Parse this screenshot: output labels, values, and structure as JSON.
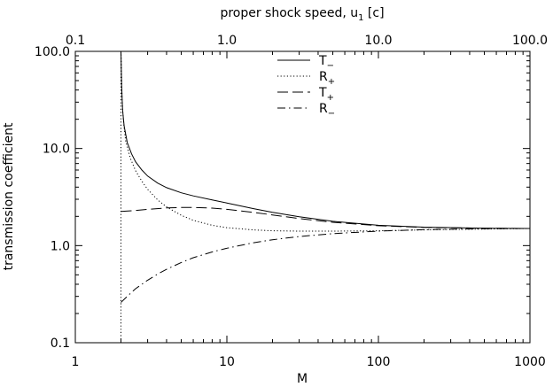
{
  "chart_data": {
    "type": "line",
    "xlabel": "M",
    "x2label_main": "proper shock speed,  u",
    "x2label_sub": "1",
    "x2label_unit": "  [c]",
    "ylabel": "transmission coefficient",
    "xscale": "log",
    "yscale": "log",
    "xlim": [
      1,
      1000
    ],
    "ylim": [
      0.1,
      100
    ],
    "x_ticks": [
      "1",
      "10",
      "100",
      "1000"
    ],
    "x2_ticks": [
      "0.1",
      "1.0",
      "10.0",
      "100.0"
    ],
    "y_ticks": [
      "0.1",
      "1.0",
      "10.0",
      "100.0"
    ],
    "legend_position": "top-center",
    "series": [
      {
        "name_main": "T",
        "name_sub": "−",
        "dash": "solid",
        "x": [
          2.0,
          2.02,
          2.05,
          2.1,
          2.2,
          2.35,
          2.5,
          2.75,
          3,
          3.5,
          4,
          5,
          6,
          8,
          10,
          15,
          20,
          30,
          50,
          100,
          200,
          500,
          1000
        ],
        "y": [
          100,
          45,
          25,
          17,
          11.5,
          8.8,
          7.3,
          6.0,
          5.2,
          4.4,
          3.95,
          3.5,
          3.25,
          2.95,
          2.75,
          2.4,
          2.2,
          1.98,
          1.78,
          1.62,
          1.55,
          1.51,
          1.5
        ]
      },
      {
        "name_main": "R",
        "name_sub": "+",
        "dash": "dotted",
        "x": [
          2.0,
          2.03,
          2.07,
          2.15,
          2.3,
          2.5,
          2.75,
          3,
          3.5,
          4,
          5,
          6,
          8,
          10,
          15,
          20,
          30,
          50,
          100,
          200,
          500,
          1000
        ],
        "y": [
          100,
          38,
          20,
          12,
          8.0,
          5.9,
          4.6,
          3.8,
          2.95,
          2.5,
          2.05,
          1.82,
          1.62,
          1.53,
          1.45,
          1.42,
          1.41,
          1.41,
          1.42,
          1.45,
          1.48,
          1.5
        ]
      },
      {
        "name_main": "T",
        "name_sub": "+",
        "dash": "dashed",
        "x": [
          2.0,
          2.5,
          3,
          4,
          5,
          6,
          8,
          10,
          15,
          20,
          30,
          50,
          100,
          200,
          500,
          1000
        ],
        "y": [
          2.25,
          2.3,
          2.36,
          2.44,
          2.47,
          2.47,
          2.43,
          2.36,
          2.2,
          2.07,
          1.9,
          1.74,
          1.6,
          1.54,
          1.51,
          1.5
        ]
      },
      {
        "name_main": "R",
        "name_sub": "−",
        "dash": "dashdot",
        "x": [
          2.0,
          2.1,
          2.25,
          2.5,
          3,
          3.5,
          4,
          5,
          6,
          8,
          10,
          15,
          20,
          30,
          50,
          100,
          200,
          500,
          1000
        ],
        "y": [
          0.26,
          0.28,
          0.31,
          0.36,
          0.44,
          0.51,
          0.57,
          0.67,
          0.75,
          0.86,
          0.94,
          1.07,
          1.15,
          1.24,
          1.33,
          1.41,
          1.46,
          1.49,
          1.5
        ]
      }
    ],
    "vertical_marker": {
      "x": 2.0,
      "dash": "dotted"
    }
  }
}
